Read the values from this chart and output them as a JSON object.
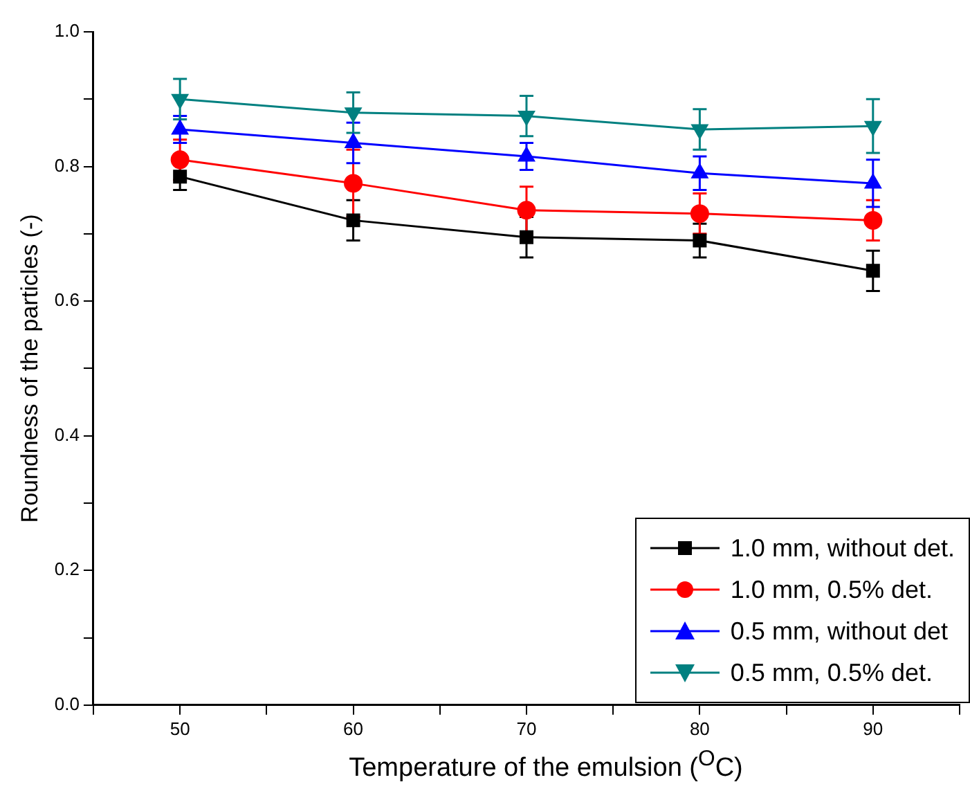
{
  "chart_data": {
    "type": "line",
    "xlabel": "Temperature of the emulsion ($^{O}$C)",
    "ylabel": "Roundness of the particles (-)",
    "x": [
      50,
      60,
      70,
      80,
      90
    ],
    "xlim": [
      45,
      95
    ],
    "xticks": [
      {
        "value": 45,
        "label": null
      },
      50,
      {
        "value": 55,
        "label": null
      },
      60,
      {
        "value": 65,
        "label": null
      },
      70,
      {
        "value": 75,
        "label": null
      },
      80,
      {
        "value": 85,
        "label": null
      },
      90,
      {
        "value": 95,
        "label": null
      }
    ],
    "ylim": [
      0,
      1
    ],
    "yticks": [
      {
        "value": 0,
        "label": "0.0"
      },
      {
        "value": 0.1,
        "label": null
      },
      {
        "value": 0.2,
        "label": "0.2"
      },
      {
        "value": 0.3,
        "label": null
      },
      {
        "value": 0.4,
        "label": "0.4"
      },
      {
        "value": 0.5,
        "label": null
      },
      {
        "value": 0.6,
        "label": "0.6"
      },
      {
        "value": 0.7,
        "label": null
      },
      {
        "value": 0.8,
        "label": "0.8"
      },
      {
        "value": 0.9,
        "label": null
      },
      {
        "value": 1,
        "label": "1.0"
      }
    ],
    "grid": false,
    "legend": "bottom right",
    "series": [
      {
        "name": "1.0 mm, without det.",
        "color": "#000000",
        "marker": "square",
        "values": [
          0.785,
          0.72,
          0.695,
          0.69,
          0.645
        ],
        "errors": [
          0.02,
          0.03,
          0.03,
          0.025,
          0.03
        ]
      },
      {
        "name": "1.0 mm, 0.5% det.",
        "color": "#ff0000",
        "marker": "circle",
        "values": [
          0.81,
          0.775,
          0.735,
          0.73,
          0.72
        ],
        "errors": [
          0.03,
          0.05,
          0.035,
          0.03,
          0.03
        ]
      },
      {
        "name": "0.5 mm, without det",
        "color": "#0000ff",
        "marker": "triangle",
        "values": [
          0.855,
          0.835,
          0.815,
          0.79,
          0.775
        ],
        "errors": [
          0.02,
          0.03,
          0.02,
          0.025,
          0.035
        ]
      },
      {
        "name": "0.5 mm, 0.5% det.",
        "color": "#008080",
        "marker": "triangle-down",
        "values": [
          0.9,
          0.88,
          0.875,
          0.855,
          0.86
        ],
        "errors": [
          0.03,
          0.03,
          0.03,
          0.03,
          0.04
        ]
      }
    ]
  }
}
